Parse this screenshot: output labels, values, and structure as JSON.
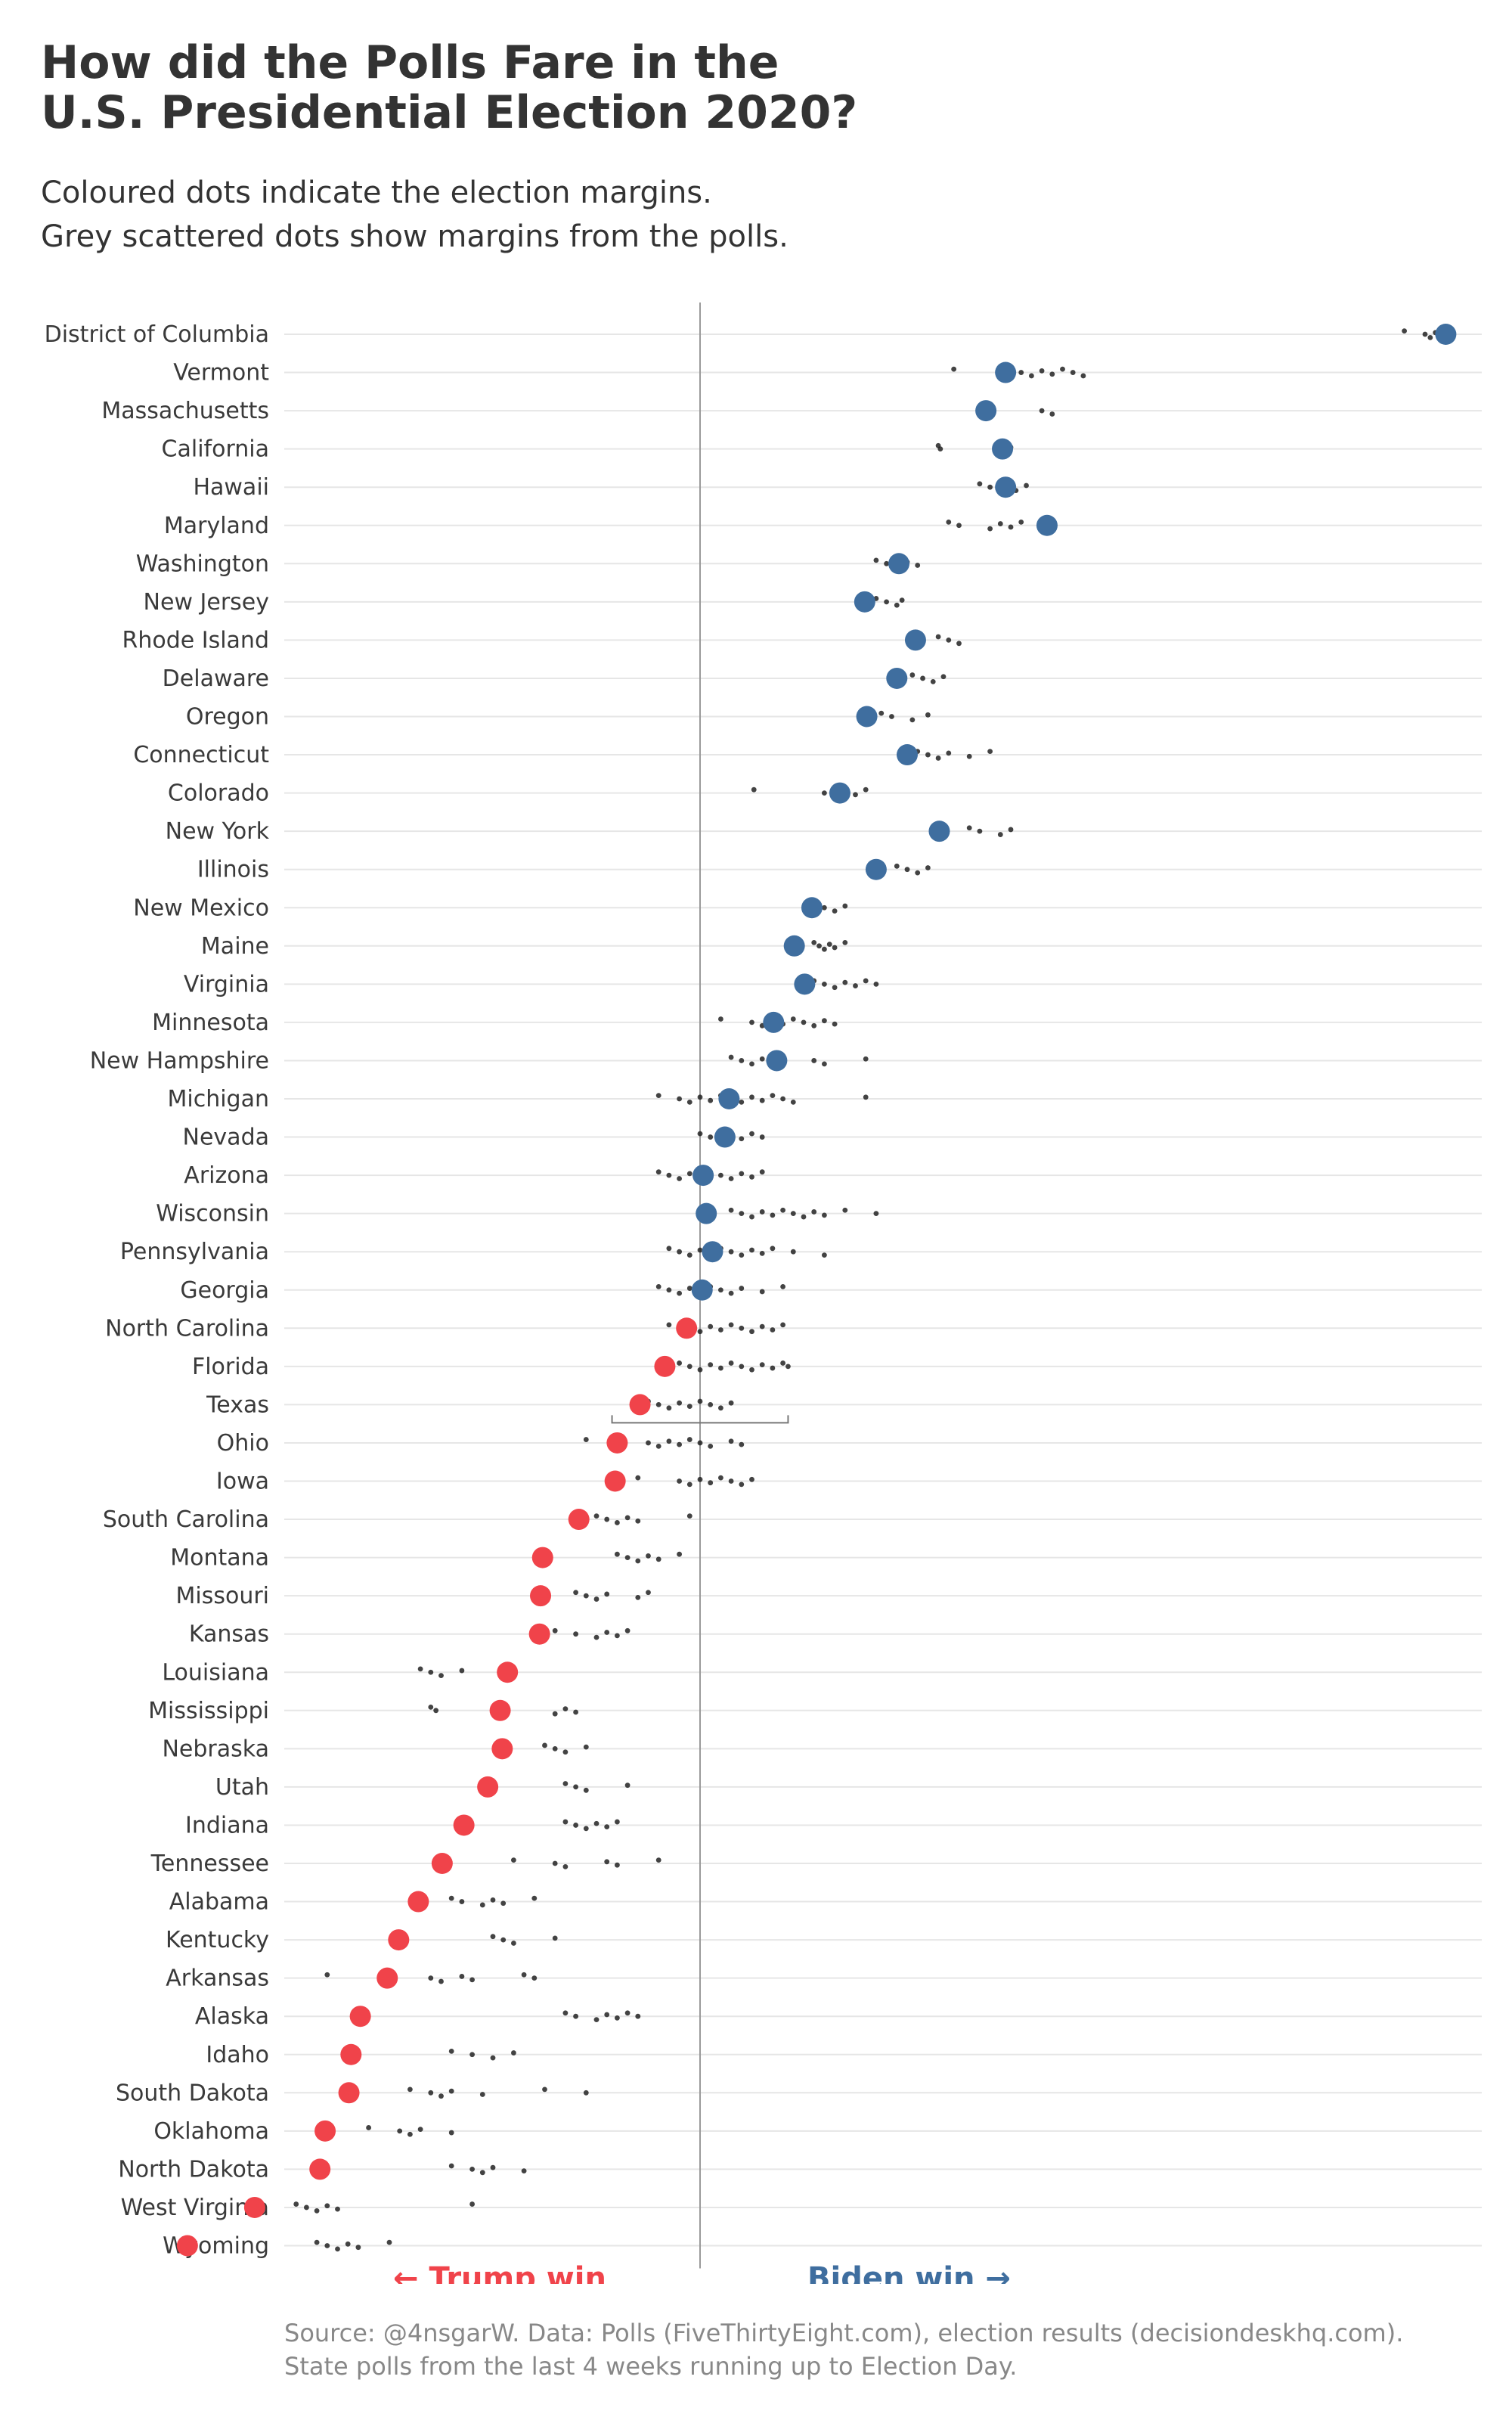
{
  "title": {
    "line1": "How did the Polls Fare in the",
    "line2": "U.S. Presidential Election 2020?"
  },
  "subtitle": {
    "line1": "Coloured dots indicate the election margins.",
    "line2": "Grey scattered dots show margins from the polls."
  },
  "legend": {
    "trump": "← Trump win",
    "biden": "Biden win →"
  },
  "footer": {
    "line1": "Source: @4nsgarW. Data: Polls (FiveThirtyEight.com), election results (decisiondeskhq.com).",
    "line2": "State polls from the last 4 weeks running up to Election Day."
  },
  "colors": {
    "biden": "#3f6e9f",
    "trump": "#f0434a",
    "poll": "#222222",
    "grid": "#e6e6e6",
    "zero_line": "#9a9a9a"
  },
  "chart_data": {
    "type": "scatter",
    "title": "How did the Polls Fare in the U.S. Presidential Election 2020?",
    "x_unit": "margin (percentage points, positive = Biden)",
    "xlim": [
      -30,
      72
    ],
    "zero_line": 0,
    "grid": "horizontal per state",
    "states": [
      {
        "name": "District of Columbia",
        "result": 72,
        "polls": [
          68,
          70,
          70.5,
          71
        ]
      },
      {
        "name": "Vermont",
        "result": 29.5,
        "polls": [
          24.5,
          31,
          32,
          33,
          34,
          35,
          36,
          37
        ]
      },
      {
        "name": "Massachusetts",
        "result": 27.6,
        "polls": [
          27,
          33,
          34
        ]
      },
      {
        "name": "California",
        "result": 29.2,
        "polls": [
          23,
          23.2,
          29.5,
          30
        ]
      },
      {
        "name": "Hawaii",
        "result": 29.5,
        "polls": [
          27,
          28,
          30.5,
          31.5
        ]
      },
      {
        "name": "Maryland",
        "result": 33.5,
        "polls": [
          24,
          25,
          28,
          29,
          30,
          31
        ]
      },
      {
        "name": "Washington",
        "result": 19.2,
        "polls": [
          17,
          18,
          19.5,
          20,
          21
        ]
      },
      {
        "name": "New Jersey",
        "result": 15.9,
        "polls": [
          17,
          18,
          19,
          19.5
        ]
      },
      {
        "name": "Rhode Island",
        "result": 20.8,
        "polls": [
          23,
          24,
          25
        ]
      },
      {
        "name": "Delaware",
        "result": 19,
        "polls": [
          20.5,
          21.5,
          22.5,
          23.5
        ]
      },
      {
        "name": "Oregon",
        "result": 16.1,
        "polls": [
          17.5,
          18.5,
          20.5,
          22
        ]
      },
      {
        "name": "Connecticut",
        "result": 20,
        "polls": [
          21,
          22,
          23,
          24,
          26,
          28
        ]
      },
      {
        "name": "Colorado",
        "result": 13.5,
        "polls": [
          5.2,
          12,
          13,
          14,
          15,
          16
        ]
      },
      {
        "name": "New York",
        "result": 23.1,
        "polls": [
          26,
          27,
          29,
          30
        ]
      },
      {
        "name": "Illinois",
        "result": 17,
        "polls": [
          19,
          20,
          21,
          22
        ]
      },
      {
        "name": "New Mexico",
        "result": 10.8,
        "polls": [
          11.5,
          12,
          13,
          14
        ]
      },
      {
        "name": "Maine",
        "result": 9.1,
        "polls": [
          11,
          11.5,
          12,
          12.5,
          13,
          14
        ]
      },
      {
        "name": "Virginia",
        "result": 10.1,
        "polls": [
          11,
          12,
          13,
          14,
          15,
          16,
          17
        ]
      },
      {
        "name": "Minnesota",
        "result": 7.1,
        "polls": [
          2,
          5,
          6,
          7,
          8,
          9,
          10,
          11,
          12,
          13
        ]
      },
      {
        "name": "New Hampshire",
        "result": 7.4,
        "polls": [
          3,
          4,
          5,
          6,
          7,
          8,
          11,
          12,
          16
        ]
      },
      {
        "name": "Michigan",
        "result": 2.8,
        "polls": [
          -4,
          -2,
          -1,
          0,
          1,
          2,
          3,
          4,
          5,
          6,
          7,
          8,
          9,
          16
        ]
      },
      {
        "name": "Nevada",
        "result": 2.4,
        "polls": [
          0,
          1,
          2,
          3,
          4,
          5,
          6
        ]
      },
      {
        "name": "Arizona",
        "result": 0.3,
        "polls": [
          -4,
          -3,
          -2,
          -1,
          0,
          1,
          2,
          3,
          4,
          5,
          6
        ]
      },
      {
        "name": "Wisconsin",
        "result": 0.6,
        "polls": [
          3,
          4,
          5,
          6,
          7,
          8,
          9,
          10,
          11,
          12,
          14,
          17
        ]
      },
      {
        "name": "Pennsylvania",
        "result": 1.2,
        "polls": [
          -3,
          -2,
          -1,
          0,
          1,
          2,
          3,
          4,
          5,
          6,
          7,
          9,
          12
        ]
      },
      {
        "name": "Georgia",
        "result": 0.2,
        "polls": [
          -4,
          -3,
          -2,
          -1,
          0,
          1,
          2,
          3,
          4,
          6,
          8
        ]
      },
      {
        "name": "North Carolina",
        "result": -1.3,
        "polls": [
          -3,
          -1,
          0,
          1,
          2,
          3,
          4,
          5,
          6,
          7,
          8
        ]
      },
      {
        "name": "Florida",
        "result": -3.4,
        "polls": [
          -2,
          -1,
          0,
          1,
          2,
          3,
          4,
          5,
          6,
          7,
          8,
          8.5
        ]
      },
      {
        "name": "Texas",
        "result": -5.8,
        "polls": [
          -5,
          -4,
          -3,
          -2,
          -1,
          0,
          1,
          2,
          3
        ],
        "whisker": [
          -8.5,
          8.5
        ]
      },
      {
        "name": "Ohio",
        "result": -8,
        "polls": [
          -11,
          -5,
          -4,
          -3,
          -2,
          -1,
          0,
          1,
          3,
          4
        ]
      },
      {
        "name": "Iowa",
        "result": -8.2,
        "polls": [
          -6,
          -2,
          -1,
          0,
          1,
          2,
          3,
          4,
          5
        ]
      },
      {
        "name": "South Carolina",
        "result": -11.7,
        "polls": [
          -10,
          -9,
          -8,
          -7,
          -6,
          -1
        ]
      },
      {
        "name": "Montana",
        "result": -15.2,
        "polls": [
          -8,
          -7,
          -6,
          -5,
          -4,
          -2
        ]
      },
      {
        "name": "Missouri",
        "result": -15.4,
        "polls": [
          -12,
          -11,
          -10,
          -9,
          -6,
          -5
        ]
      },
      {
        "name": "Kansas",
        "result": -15.5,
        "polls": [
          -14,
          -12,
          -10,
          -9,
          -8,
          -7
        ]
      },
      {
        "name": "Louisiana",
        "result": -18.6,
        "polls": [
          -27,
          -26,
          -25,
          -23,
          -18
        ]
      },
      {
        "name": "Mississippi",
        "result": -19.3,
        "polls": [
          -26,
          -25.5,
          -14,
          -13,
          -12
        ]
      },
      {
        "name": "Nebraska",
        "result": -19.1,
        "polls": [
          -15,
          -14,
          -13,
          -11
        ]
      },
      {
        "name": "Utah",
        "result": -20.5,
        "polls": [
          -13,
          -12,
          -11,
          -7
        ]
      },
      {
        "name": "Indiana",
        "result": -22.8,
        "polls": [
          -13,
          -12,
          -11,
          -10,
          -9,
          -8
        ]
      },
      {
        "name": "Tennessee",
        "result": -24.9,
        "polls": [
          -18,
          -14,
          -13,
          -9,
          -8,
          -4
        ]
      },
      {
        "name": "Alabama",
        "result": -27.2,
        "polls": [
          -24,
          -23,
          -21,
          -20,
          -19,
          -16
        ]
      },
      {
        "name": "Kentucky",
        "result": -29.1,
        "polls": [
          -20,
          -19,
          -18,
          -14
        ]
      },
      {
        "name": "Arkansas",
        "result": -30.2,
        "polls": [
          -36,
          -26,
          -25,
          -23,
          -22,
          -17,
          -16
        ]
      },
      {
        "name": "Alaska",
        "result": -32.8,
        "polls": [
          -13,
          -12,
          -10,
          -9,
          -8,
          -7,
          -6
        ]
      },
      {
        "name": "Idaho",
        "result": -33.7,
        "polls": [
          -24,
          -22,
          -20,
          -18
        ]
      },
      {
        "name": "South Dakota",
        "result": -33.9,
        "polls": [
          -28,
          -26,
          -25,
          -24,
          -21,
          -15,
          -11
        ]
      },
      {
        "name": "Oklahoma",
        "result": -36.2,
        "polls": [
          -32,
          -29,
          -28,
          -27,
          -24
        ]
      },
      {
        "name": "North Dakota",
        "result": -36.7,
        "polls": [
          -24,
          -22,
          -21,
          -20,
          -17
        ]
      },
      {
        "name": "West Virginia",
        "result": -43,
        "polls": [
          -39,
          -38,
          -37,
          -36,
          -35,
          -22
        ]
      },
      {
        "name": "Wyoming",
        "result": -49.5,
        "polls": [
          -37,
          -36,
          -35,
          -34,
          -33,
          -30
        ]
      }
    ]
  }
}
